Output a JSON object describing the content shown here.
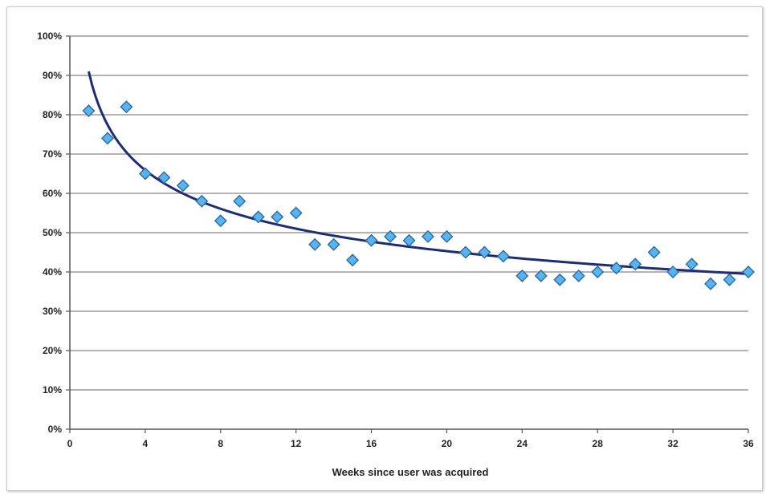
{
  "chart_data": {
    "type": "scatter",
    "xlabel": "Weeks since user was acquired",
    "ylabel": "",
    "xlim": [
      0,
      36
    ],
    "ylim": [
      0,
      100
    ],
    "x_ticks": [
      0,
      4,
      8,
      12,
      16,
      20,
      24,
      28,
      32,
      36
    ],
    "y_ticks": [
      0,
      10,
      20,
      30,
      40,
      50,
      60,
      70,
      80,
      90,
      100
    ],
    "y_tick_suffix": "%",
    "grid": "horizontal",
    "marker": "diamond",
    "colors": {
      "marker_fill": "#5ab4ec",
      "marker_stroke": "#2a6aa8",
      "trendline": "#1c2d78",
      "gridline": "#9a9a9a",
      "axis": "#555555"
    },
    "series": [
      {
        "x": [
          1,
          2,
          3,
          4,
          5,
          6,
          7,
          8,
          9,
          10,
          11,
          12,
          13,
          14,
          15,
          16,
          17,
          18,
          19,
          20,
          21,
          22,
          23,
          24,
          25,
          26,
          27,
          28,
          29,
          30,
          31,
          32,
          33,
          34,
          35,
          36
        ],
        "y": [
          81,
          74,
          82,
          65,
          64,
          62,
          58,
          53,
          58,
          54,
          54,
          55,
          47,
          47,
          43,
          48,
          49,
          48,
          49,
          49,
          45,
          45,
          44,
          39,
          39,
          38,
          39,
          40,
          41,
          42,
          45,
          40,
          42,
          37,
          38,
          40
        ]
      }
    ],
    "trendline": {
      "type": "power",
      "x_range": [
        1,
        36
      ],
      "y_start": 91,
      "y_end": 39.5
    }
  }
}
